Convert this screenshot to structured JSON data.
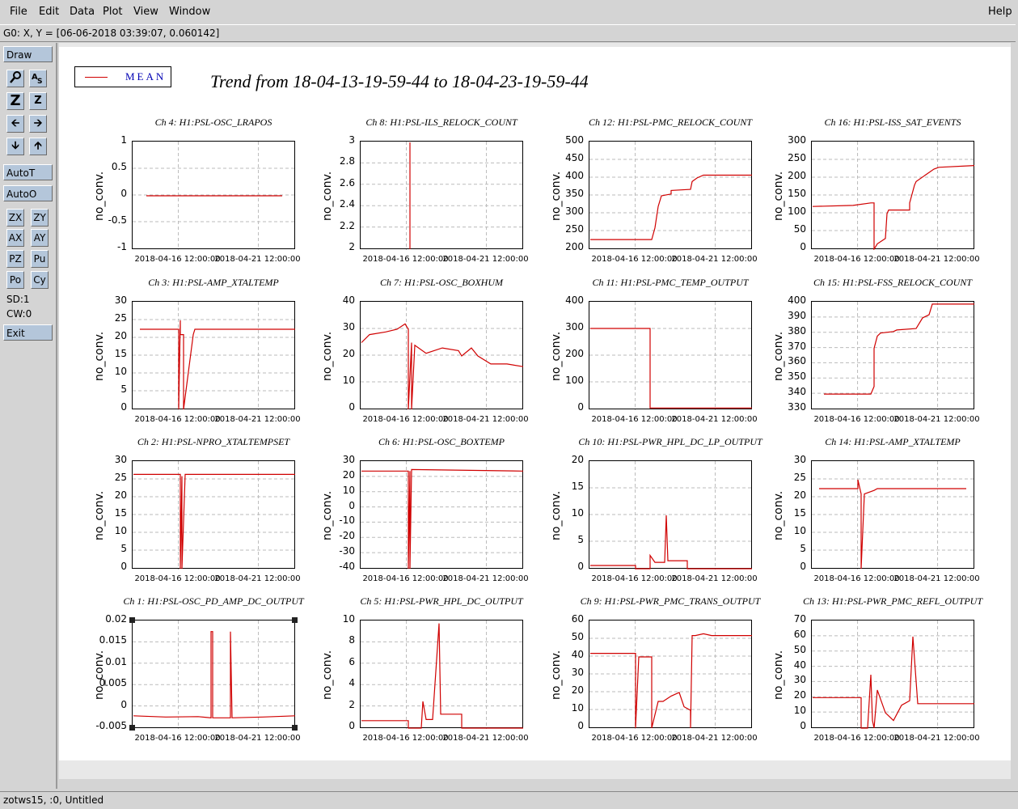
{
  "menu": {
    "items": [
      "File",
      "Edit",
      "Data",
      "Plot",
      "View",
      "Window"
    ],
    "help": "Help"
  },
  "coord_readout": "G0: X, Y = [06-06-2018 03:39:07, 0.060142]",
  "toolbar": {
    "draw": "Draw",
    "autot": "AutoT",
    "autoo": "AutoO",
    "zx": "ZX",
    "zy": "ZY",
    "ax": "AX",
    "ay": "AY",
    "pz": "PZ",
    "pu": "Pu",
    "po": "Po",
    "cy": "Cy",
    "sd": "SD:1",
    "cw": "CW:0",
    "exit": "Exit",
    "icons": [
      "magnifier-icon",
      "text-size-icon",
      "zoom-z-icon",
      "unzoom-z-icon",
      "arrow-left-icon",
      "arrow-right-icon",
      "arrow-down-icon",
      "arrow-up-icon"
    ]
  },
  "legend": {
    "label": "MEAN",
    "color": "#d00000"
  },
  "main_title": "Trend from 18-04-13-19-59-44 to 18-04-23-19-59-44",
  "status": "zotws15, :0, Untitled",
  "chart_data": [
    {
      "type": "line",
      "title": "Ch 4: H1:PSL-OSC_LRAPOS",
      "ylabel": "no_conv.",
      "ylim": [
        -1,
        1
      ],
      "yticks": [
        "1",
        "0.5",
        "0",
        "-0.5",
        "-1"
      ],
      "xticks": [
        "2018-04-16 12:00:00",
        "2018-04-21 12:00:00"
      ],
      "x": [
        0.08,
        0.92
      ],
      "y": [
        0,
        0
      ]
    },
    {
      "type": "line",
      "title": "Ch 8: H1:PSL-ILS_RELOCK_COUNT",
      "ylabel": "no_conv.",
      "ylim": [
        2,
        3
      ],
      "yticks": [
        "3",
        "2.8",
        "2.6",
        "2.4",
        "2.2",
        "2"
      ],
      "xticks": [
        "2018-04-16 12:00:00",
        "2018-04-21 12:00:00"
      ],
      "x": [
        0.3,
        0.3
      ],
      "y": [
        2,
        3
      ]
    },
    {
      "type": "line",
      "title": "Ch 12: H1:PSL-PMC_RELOCK_COUNT",
      "ylabel": "no_conv.",
      "ylim": [
        200,
        500
      ],
      "yticks": [
        "500",
        "450",
        "400",
        "350",
        "300",
        "250",
        "200"
      ],
      "xticks": [
        "2018-04-16 12:00:00",
        "2018-04-21 12:00:00"
      ],
      "x": [
        0,
        0.38,
        0.4,
        0.42,
        0.44,
        0.5,
        0.5,
        0.62,
        0.63,
        0.66,
        0.7,
        1
      ],
      "y": [
        227,
        227,
        260,
        320,
        350,
        355,
        365,
        368,
        390,
        400,
        408,
        408
      ]
    },
    {
      "type": "line",
      "title": "Ch 16: H1:PSL-ISS_SAT_EVENTS",
      "ylabel": "no_conv.",
      "ylim": [
        0,
        300
      ],
      "yticks": [
        "300",
        "250",
        "200",
        "150",
        "100",
        "50",
        "0"
      ],
      "xticks": [
        "2018-04-16 12:00:00",
        "2018-04-21 12:00:00"
      ],
      "x": [
        0,
        0.25,
        0.36,
        0.38,
        0.38,
        0.4,
        0.45,
        0.46,
        0.47,
        0.6,
        0.6,
        0.63,
        0.64,
        0.75,
        0.78,
        1
      ],
      "y": [
        120,
        123,
        130,
        130,
        0,
        15,
        30,
        100,
        110,
        110,
        130,
        180,
        190,
        225,
        230,
        235
      ]
    },
    {
      "type": "line",
      "title": "Ch 3: H1:PSL-AMP_XTALTEMP",
      "ylabel": "no_conv.",
      "ylim": [
        0,
        30
      ],
      "yticks": [
        "30",
        "25",
        "20",
        "15",
        "10",
        "5",
        "0"
      ],
      "xticks": [
        "2018-04-16 12:00:00",
        "2018-04-21 12:00:00"
      ],
      "x": [
        0.04,
        0.28,
        0.28,
        0.29,
        0.29,
        0.31,
        0.31,
        0.37,
        0.38,
        1
      ],
      "y": [
        22.5,
        22.5,
        0,
        25,
        21,
        21,
        0,
        21,
        22.5,
        22.5
      ]
    },
    {
      "type": "line",
      "title": "Ch 7: H1:PSL-OSC_BOXHUM",
      "ylabel": "no_conv.",
      "ylim": [
        0,
        40
      ],
      "yticks": [
        "40",
        "30",
        "20",
        "10",
        "0"
      ],
      "xticks": [
        "2018-04-16 12:00:00",
        "2018-04-21 12:00:00"
      ],
      "x": [
        0,
        0.05,
        0.15,
        0.22,
        0.27,
        0.29,
        0.29,
        0.31,
        0.31,
        0.33,
        0.4,
        0.5,
        0.6,
        0.62,
        0.68,
        0.72,
        0.8,
        0.9,
        1
      ],
      "y": [
        25,
        28,
        29,
        30,
        32,
        30,
        0,
        25,
        0,
        24,
        21,
        23,
        22,
        20,
        23,
        20,
        17,
        17,
        16
      ]
    },
    {
      "type": "line",
      "title": "Ch 11: H1:PSL-PMC_TEMP_OUTPUT",
      "ylabel": "no_conv.",
      "ylim": [
        0,
        400
      ],
      "yticks": [
        "400",
        "300",
        "200",
        "100",
        "0"
      ],
      "xticks": [
        "2018-04-16 12:00:00",
        "2018-04-21 12:00:00"
      ],
      "x": [
        0,
        0.37,
        0.37,
        1
      ],
      "y": [
        303,
        303,
        5,
        5
      ]
    },
    {
      "type": "line",
      "title": "Ch 15: H1:PSL-FSS_RELOCK_COUNT",
      "ylabel": "no_conv.",
      "ylim": [
        330,
        400
      ],
      "yticks": [
        "400",
        "390",
        "380",
        "370",
        "360",
        "350",
        "340",
        "330"
      ],
      "xticks": [
        "2018-04-16 12:00:00",
        "2018-04-21 12:00:00"
      ],
      "x": [
        0.07,
        0.36,
        0.38,
        0.38,
        0.4,
        0.42,
        0.5,
        0.52,
        0.64,
        0.68,
        0.72,
        0.74,
        1
      ],
      "y": [
        340,
        340,
        345,
        370,
        378,
        380,
        381,
        382,
        383,
        390,
        392,
        399,
        399
      ]
    },
    {
      "type": "line",
      "title": "Ch 2: H1:PSL-NPRO_XTALTEMPSET",
      "ylabel": "no_conv.",
      "ylim": [
        0,
        30
      ],
      "yticks": [
        "30",
        "25",
        "20",
        "15",
        "10",
        "5",
        "0"
      ],
      "xticks": [
        "2018-04-16 12:00:00",
        "2018-04-21 12:00:00"
      ],
      "x": [
        0,
        0.29,
        0.29,
        0.3,
        0.3,
        0.32,
        0.32,
        1
      ],
      "y": [
        26.5,
        26.5,
        0,
        26,
        0,
        26.5,
        26.5,
        26.5
      ]
    },
    {
      "type": "line",
      "title": "Ch 6: H1:PSL-OSC_BOXTEMP",
      "ylabel": "no_conv.",
      "ylim": [
        -40,
        30
      ],
      "yticks": [
        "30",
        "20",
        "10",
        "0",
        "-10",
        "-20",
        "-30",
        "-40"
      ],
      "xticks": [
        "2018-04-16 12:00:00",
        "2018-04-21 12:00:00"
      ],
      "x": [
        0,
        0.29,
        0.29,
        0.3,
        0.3,
        0.31,
        0.31,
        1
      ],
      "y": [
        24,
        24,
        -40,
        24,
        -40,
        25,
        25,
        24
      ]
    },
    {
      "type": "line",
      "title": "Ch 10: H1:PSL-PWR_HPL_DC_LP_OUTPUT",
      "ylabel": "no_conv.",
      "ylim": [
        0,
        20
      ],
      "yticks": [
        "20",
        "15",
        "10",
        "5",
        "0"
      ],
      "xticks": [
        "2018-04-16 12:00:00",
        "2018-04-21 12:00:00"
      ],
      "x": [
        0,
        0.28,
        0.28,
        0.37,
        0.37,
        0.4,
        0.46,
        0.47,
        0.48,
        0.48,
        0.6,
        0.6,
        0.61,
        1
      ],
      "y": [
        0.6,
        0.6,
        0,
        0,
        2.5,
        1.2,
        1.2,
        10,
        1.5,
        1.5,
        1.5,
        0,
        0,
        0
      ]
    },
    {
      "type": "line",
      "title": "Ch 14: H1:PSL-AMP_XTALTEMP",
      "ylabel": "no_conv.",
      "ylim": [
        0,
        30
      ],
      "yticks": [
        "30",
        "25",
        "20",
        "15",
        "10",
        "5",
        "0"
      ],
      "xticks": [
        "2018-04-16 12:00:00",
        "2018-04-21 12:00:00"
      ],
      "x": [
        0.04,
        0.28,
        0.28,
        0.3,
        0.3,
        0.32,
        0.32,
        0.38,
        0.4,
        0.95
      ],
      "y": [
        22.5,
        22.5,
        25,
        21,
        0,
        21,
        21,
        22,
        22.5,
        22.5
      ]
    },
    {
      "type": "line",
      "title": "Ch 1: H1:PSL-OSC_PD_AMP_DC_OUTPUT",
      "ylabel": "no_conv.",
      "ylim": [
        -0.006,
        0.02
      ],
      "yticks": [
        "0.02",
        "0.015",
        "0.01",
        "0.005",
        "0",
        "-0.005"
      ],
      "xticks": [
        "2018-04-16 12:00:00",
        "2018-04-21 12:00:00"
      ],
      "x": [
        0,
        0.2,
        0.4,
        0.48,
        0.48,
        0.49,
        0.49,
        0.6,
        0.6,
        0.61,
        0.61,
        0.8,
        1
      ],
      "y": [
        -0.003,
        -0.0033,
        -0.0032,
        -0.0035,
        0.0175,
        0.0175,
        -0.0035,
        -0.0035,
        0.0175,
        -0.0035,
        -0.0035,
        -0.0033,
        -0.003
      ]
    },
    {
      "type": "line",
      "title": "Ch 5: H1:PSL-PWR_HPL_DC_OUTPUT",
      "ylabel": "no_conv.",
      "ylim": [
        0,
        10
      ],
      "yticks": [
        "10",
        "8",
        "6",
        "4",
        "2",
        "0"
      ],
      "xticks": [
        "2018-04-16 12:00:00",
        "2018-04-21 12:00:00"
      ],
      "x": [
        0,
        0.29,
        0.29,
        0.37,
        0.38,
        0.4,
        0.44,
        0.48,
        0.49,
        0.5,
        0.62,
        0.62,
        1
      ],
      "y": [
        0.7,
        0.7,
        0,
        0,
        2.5,
        0.8,
        0.8,
        9.8,
        1.3,
        1.3,
        1.3,
        0,
        0
      ]
    },
    {
      "type": "line",
      "title": "Ch 9: H1:PSL-PWR_PMC_TRANS_OUTPUT",
      "ylabel": "no_conv.",
      "ylim": [
        0,
        60
      ],
      "yticks": [
        "60",
        "50",
        "40",
        "30",
        "20",
        "10",
        "0"
      ],
      "xticks": [
        "2018-04-16 12:00:00",
        "2018-04-21 12:00:00"
      ],
      "x": [
        0,
        0.28,
        0.28,
        0.3,
        0.35,
        0.38,
        0.38,
        0.42,
        0.45,
        0.5,
        0.55,
        0.58,
        0.62,
        0.62,
        0.63,
        0.65,
        0.7,
        0.75,
        0.8,
        1
      ],
      "y": [
        42,
        42,
        0,
        40,
        40,
        40,
        0,
        15,
        15,
        18,
        20,
        12,
        10,
        0,
        52,
        52,
        53,
        52,
        52,
        52
      ]
    },
    {
      "type": "line",
      "title": "Ch 13: H1:PSL-PWR_PMC_REFL_OUTPUT",
      "ylabel": "no_conv.",
      "ylim": [
        0,
        70
      ],
      "yticks": [
        "70",
        "60",
        "50",
        "40",
        "30",
        "20",
        "10",
        "0"
      ],
      "xticks": [
        "2018-04-16 12:00:00",
        "2018-04-21 12:00:00"
      ],
      "x": [
        0,
        0.3,
        0.3,
        0.34,
        0.36,
        0.37,
        0.38,
        0.4,
        0.45,
        0.5,
        0.55,
        0.6,
        0.62,
        0.65,
        0.7,
        1
      ],
      "y": [
        20,
        20,
        0,
        0,
        35,
        5,
        0,
        25,
        10,
        5,
        15,
        18,
        60,
        16,
        16,
        16
      ]
    }
  ]
}
